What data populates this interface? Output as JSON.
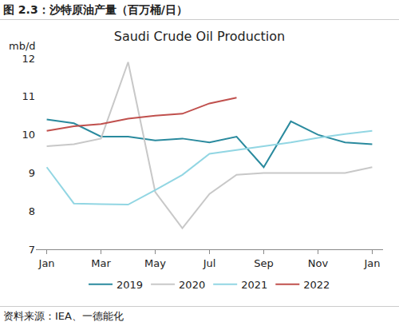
{
  "chart_data": {
    "type": "line",
    "figure_title": "图 2.3：沙特原油产量（百万桶/日）",
    "title": "Saudi Crude Oil Production",
    "y_label": "mb/d",
    "source": "资料来源：IEA、一德能化",
    "categories": [
      "Jan",
      null,
      "Mar",
      null,
      "May",
      null,
      "Jul",
      null,
      "Sep",
      null,
      "Nov",
      null,
      "Jan"
    ],
    "series": [
      {
        "name": "2019",
        "color": "#2a8a9e",
        "values": [
          10.4,
          10.3,
          9.95,
          9.95,
          9.85,
          9.9,
          9.8,
          9.95,
          9.15,
          10.35,
          10.0,
          9.8,
          9.75
        ]
      },
      {
        "name": "2020",
        "color": "#c8c8c8",
        "values": [
          9.7,
          9.75,
          9.9,
          11.9,
          8.5,
          7.55,
          8.45,
          8.95,
          9.0,
          9.0,
          9.0,
          9.0,
          9.15
        ]
      },
      {
        "name": "2021",
        "color": "#92d6e3",
        "values": [
          9.15,
          8.2,
          8.18,
          8.17,
          8.55,
          8.95,
          9.5,
          9.6,
          9.7,
          9.8,
          9.92,
          10.02,
          10.1
        ]
      },
      {
        "name": "2022",
        "color": "#c0504d",
        "values": [
          10.1,
          10.22,
          10.28,
          10.42,
          10.5,
          10.55,
          10.82,
          10.97,
          null,
          null,
          null,
          null,
          null
        ]
      }
    ],
    "ylim": [
      7,
      12
    ],
    "yticks": [
      7,
      8,
      9,
      10,
      11,
      12
    ],
    "grid": false,
    "legend": "bottom"
  }
}
